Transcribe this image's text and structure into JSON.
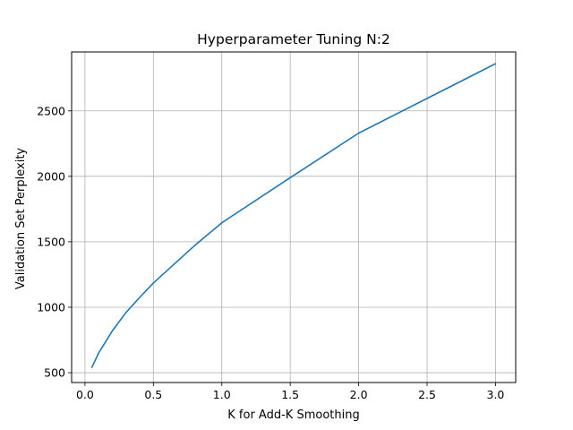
{
  "chart_data": {
    "type": "line",
    "title": "Hyperparameter Tuning N:2",
    "xlabel": "K for Add-K Smoothing",
    "ylabel": "Validation Set Perplexity",
    "xlim": [
      -0.0975,
      3.1475
    ],
    "ylim": [
      425,
      2950
    ],
    "xticks": [
      0.0,
      0.5,
      1.0,
      1.5,
      2.0,
      2.5,
      3.0
    ],
    "xtick_labels": [
      "0.0",
      "0.5",
      "1.0",
      "1.5",
      "2.0",
      "2.5",
      "3.0"
    ],
    "yticks": [
      500,
      1000,
      1500,
      2000,
      2500
    ],
    "ytick_labels": [
      "500",
      "1000",
      "1500",
      "2000",
      "2500"
    ],
    "grid": true,
    "series": [
      {
        "name": "perplexity",
        "color": "#1f77b4",
        "x": [
          0.05,
          0.1,
          0.2,
          0.3,
          0.4,
          0.5,
          0.6,
          0.8,
          1.0,
          1.5,
          2.0,
          2.5,
          3.0
        ],
        "y": [
          540,
          650,
          820,
          960,
          1075,
          1185,
          1280,
          1470,
          1645,
          1990,
          2330,
          2595,
          2860
        ]
      }
    ]
  }
}
